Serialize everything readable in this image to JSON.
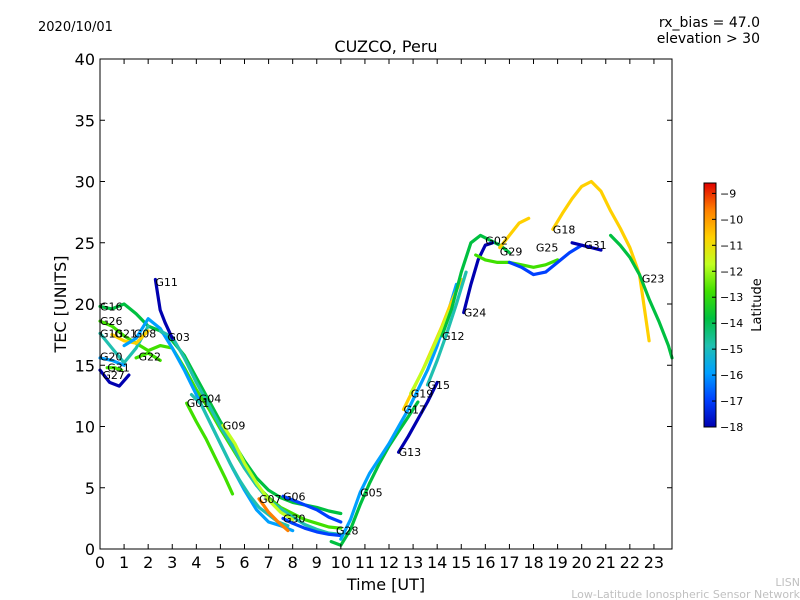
{
  "header": {
    "date": "2020/10/01",
    "rx_bias": "rx_bias = 47.0",
    "elevation": "elevation > 30"
  },
  "footer": {
    "credit_short": "LISN",
    "credit_long": "Low-Latitude Ionospheric Sensor Network"
  },
  "chart_data": {
    "type": "line",
    "title": "CUZCO, Peru",
    "xlabel": "Time [UT]",
    "ylabel": "TEC [UNITS]",
    "xlim": [
      0,
      23.75
    ],
    "ylim": [
      0,
      40
    ],
    "xticks": [
      0,
      1,
      2,
      3,
      4,
      5,
      6,
      7,
      8,
      9,
      10,
      11,
      12,
      13,
      14,
      15,
      16,
      17,
      18,
      19,
      20,
      21,
      22,
      23
    ],
    "yticks": [
      0,
      5,
      10,
      15,
      20,
      25,
      30,
      35,
      40
    ],
    "colorbar": {
      "label": "Latitude",
      "range": [
        -18,
        -8.6
      ],
      "ticks": [
        -9,
        -10,
        -11,
        -12,
        -13,
        -14,
        -15,
        -16,
        -17,
        -18
      ],
      "colors": [
        "#0000b0",
        "#0040ff",
        "#00a0ff",
        "#20c0b0",
        "#00c040",
        "#40e000",
        "#c0ff20",
        "#ffd000",
        "#ff8000",
        "#e00000"
      ]
    },
    "series": [
      {
        "name": "G16",
        "label_at": [
          0,
          19.8
        ],
        "lat": -13.5,
        "x": [
          0,
          0.5,
          1,
          1.5,
          2,
          2.5,
          3,
          3.5,
          4,
          4.5,
          5,
          5.5,
          6,
          6.5,
          7,
          7.5,
          8,
          8.5,
          9,
          9.5,
          10
        ],
        "y": [
          19.8,
          19.6,
          20,
          19.2,
          18.2,
          17.8,
          17,
          15.8,
          14,
          12.2,
          10.4,
          8.8,
          7.2,
          5.8,
          4.8,
          4.2,
          3.8,
          3.6,
          3.4,
          3.1,
          2.9
        ]
      },
      {
        "name": "G26",
        "label_at": [
          0,
          18.6
        ],
        "lat": -12.5,
        "x": [
          0,
          0.5,
          1,
          1.5,
          2,
          2.5,
          3,
          3.5,
          4,
          4.5,
          5,
          5.5,
          6,
          6.5,
          7,
          7.5,
          8,
          8.5,
          9,
          9.5,
          10
        ],
        "y": [
          18.6,
          18.2,
          17.4,
          16.8,
          16.2,
          16.6,
          16.4,
          14.8,
          13,
          11.5,
          9.8,
          8.2,
          6.6,
          5.2,
          4.2,
          3.4,
          2.9,
          2.4,
          2.1,
          1.8,
          1.7
        ]
      },
      {
        "name": "G10",
        "label_at": [
          0,
          17.6
        ],
        "lat": -15,
        "x": [
          0,
          0.5,
          1,
          1.5,
          2
        ],
        "y": [
          17.6,
          16.4,
          15.2,
          16.4,
          18.2
        ]
      },
      {
        "name": "G21",
        "label_at": [
          0.6,
          17.6
        ],
        "lat": -11,
        "x": [
          0.5,
          1,
          1.5,
          2
        ],
        "y": [
          17.5,
          17,
          16.8,
          17.8
        ]
      },
      {
        "name": "G08",
        "label_at": [
          1.4,
          17.6
        ],
        "lat": -16,
        "x": [
          1,
          1.5,
          2,
          2.5,
          3,
          3.5,
          4,
          4.5,
          5,
          5.5,
          6,
          6.5,
          7,
          7.5,
          8
        ],
        "y": [
          16.6,
          17.2,
          18.8,
          18,
          16.4,
          14.6,
          12.6,
          10.6,
          8.6,
          6.6,
          4.8,
          3.2,
          2.2,
          1.9,
          1.5
        ]
      },
      {
        "name": "G03",
        "label_at": [
          2.8,
          17.3
        ],
        "lat": -14.5,
        "x": [
          2.5,
          3,
          3.5,
          4,
          4.5,
          5,
          5.5,
          6,
          6.5,
          7,
          7.5,
          8,
          8.5,
          9,
          9.5,
          10
        ],
        "y": [
          17.8,
          17.3,
          15.6,
          13.6,
          11.8,
          10,
          8.4,
          6.6,
          5.2,
          4,
          3.3,
          2.6,
          2,
          1.6,
          1.3,
          1.2
        ]
      },
      {
        "name": "G20",
        "label_at": [
          0,
          15.7
        ],
        "lat": -16,
        "x": [
          0,
          0.5,
          1
        ],
        "y": [
          15.6,
          15.4,
          15
        ]
      },
      {
        "name": "G22",
        "label_at": [
          1.6,
          15.7
        ],
        "lat": -13,
        "x": [
          1.5,
          2,
          2.5
        ],
        "y": [
          15.6,
          16,
          15.4
        ]
      },
      {
        "name": "G31",
        "label_at": [
          0.3,
          14.8
        ],
        "lat": -13,
        "x": [
          0.3,
          0.6,
          0.9
        ],
        "y": [
          14.8,
          14.8,
          14.6
        ]
      },
      {
        "name": "G27",
        "label_at": [
          0.1,
          14.2
        ],
        "lat": -17.5,
        "x": [
          0,
          0.4,
          0.8,
          1.2
        ],
        "y": [
          14.6,
          13.6,
          13.3,
          14.2
        ]
      },
      {
        "name": "G11",
        "label_at": [
          2.3,
          21.8
        ],
        "lat": -17.5,
        "x": [
          2.3,
          2.5,
          2.7,
          3
        ],
        "y": [
          22,
          19.5,
          18.5,
          17.2
        ]
      },
      {
        "name": "G04",
        "label_at": [
          4.1,
          12.3
        ],
        "lat": -15,
        "x": [
          3.8,
          4.2,
          4.6,
          5,
          5.4,
          5.8,
          6.2,
          6.6,
          7,
          7.4,
          7.8
        ],
        "y": [
          12.6,
          11.8,
          10.2,
          8.6,
          7,
          5.6,
          4.4,
          3.4,
          2.8,
          2.2,
          1.9
        ]
      },
      {
        "name": "G01",
        "label_at": [
          3.6,
          11.9
        ],
        "lat": -13,
        "x": [
          3.6,
          4,
          4.4,
          4.8,
          5.2,
          5.5
        ],
        "y": [
          11.9,
          10.4,
          9,
          7.4,
          5.8,
          4.5
        ]
      },
      {
        "name": "G09",
        "label_at": [
          5.1,
          10.1
        ],
        "lat": -12,
        "x": [
          5.1,
          5.6,
          6,
          6.5,
          7,
          7.5,
          8
        ],
        "y": [
          10.1,
          8.6,
          7,
          5.4,
          4,
          3,
          2.4
        ]
      },
      {
        "name": "G07",
        "label_at": [
          6.6,
          4.1
        ],
        "lat": -10,
        "x": [
          6.6,
          7,
          7.4,
          7.8
        ],
        "y": [
          4.1,
          3,
          2.2,
          1.5
        ]
      },
      {
        "name": "G06",
        "label_at": [
          7.6,
          4.3
        ],
        "lat": -16.5,
        "x": [
          7.6,
          8,
          8.5,
          9,
          9.5,
          10
        ],
        "y": [
          4.3,
          4,
          3.6,
          3.2,
          2.6,
          2.2
        ]
      },
      {
        "name": "G30",
        "label_at": [
          7.6,
          2.5
        ],
        "lat": -17,
        "x": [
          7.6,
          8,
          8.5,
          9,
          9.5,
          10
        ],
        "y": [
          2.5,
          2.1,
          1.7,
          1.4,
          1.2,
          1.1
        ]
      },
      {
        "name": "G28",
        "label_at": [
          9.8,
          1.5
        ],
        "lat": -13.5,
        "x": [
          9.6,
          10,
          10.4,
          10.8,
          11.2,
          11.6,
          12,
          12.4,
          12.8,
          13.2
        ],
        "y": [
          0.6,
          0.3,
          1.6,
          3.6,
          5.4,
          7,
          8.4,
          9.6,
          10.8,
          12
        ]
      },
      {
        "name": "G05",
        "label_at": [
          10.8,
          4.6
        ],
        "lat": -16,
        "x": [
          10,
          10.4,
          10.8,
          11.2,
          11.6,
          12,
          12.4,
          12.8,
          13.2,
          13.6,
          14,
          14.4,
          14.8
        ],
        "y": [
          0.8,
          2.4,
          4.6,
          6.2,
          7.4,
          8.6,
          10,
          11.4,
          13,
          14.6,
          16.6,
          19,
          21.6
        ]
      },
      {
        "name": "G13",
        "label_at": [
          12.4,
          7.9
        ],
        "lat": -17.5,
        "x": [
          12.4,
          12.8,
          13.2,
          13.6,
          14
        ],
        "y": [
          7.9,
          9.2,
          10.6,
          12,
          13.6
        ]
      },
      {
        "name": "G17",
        "label_at": [
          12.6,
          11.4
        ],
        "lat": -11,
        "x": [
          12.6,
          13,
          13.4,
          13.8,
          14.2,
          14.6,
          15
        ],
        "y": [
          11.4,
          13,
          14.6,
          16.4,
          18.2,
          20.2,
          22
        ]
      },
      {
        "name": "G19",
        "label_at": [
          12.9,
          12.7
        ],
        "lat": -12,
        "x": [
          12.9,
          13.3,
          13.7,
          14.1,
          14.5
        ],
        "y": [
          12.7,
          14.2,
          15.8,
          17.6,
          19.4
        ]
      },
      {
        "name": "G15",
        "label_at": [
          13.6,
          13.4
        ],
        "lat": -15,
        "x": [
          13.6,
          14,
          14.4,
          14.8,
          15.2
        ],
        "y": [
          13.4,
          15.4,
          17.6,
          20,
          22.6
        ]
      },
      {
        "name": "G12",
        "label_at": [
          14.2,
          17.4
        ],
        "lat": -13.5,
        "x": [
          14.2,
          14.6,
          15,
          15.4,
          15.8,
          16.2,
          16.6,
          17
        ],
        "y": [
          17.4,
          19.6,
          22.6,
          25,
          25.6,
          25.2,
          24.8,
          24.2
        ]
      },
      {
        "name": "G24",
        "label_at": [
          15.1,
          19.3
        ],
        "lat": -17.5,
        "x": [
          15.1,
          15.4,
          15.7,
          16,
          16.3
        ],
        "y": [
          19.3,
          21.6,
          23.6,
          24.8,
          25
        ]
      },
      {
        "name": "G02",
        "label_at": [
          16,
          25.2
        ],
        "lat": -12.5,
        "x": [
          15.6,
          16,
          16.5,
          17,
          17.5,
          18,
          18.5,
          19
        ],
        "y": [
          24,
          23.6,
          23.4,
          23.4,
          23.2,
          23,
          23.2,
          23.6
        ]
      },
      {
        "name": "G29",
        "label_at": [
          16.6,
          24.3
        ],
        "lat": -11,
        "x": [
          16.6,
          17,
          17.4,
          17.8
        ],
        "y": [
          24.6,
          25.6,
          26.6,
          27
        ]
      },
      {
        "name": "G25",
        "label_at": [
          18.1,
          24.6
        ],
        "lat": -16.5,
        "x": [
          17,
          17.5,
          18,
          18.5,
          19,
          19.5,
          20
        ],
        "y": [
          23.4,
          23,
          22.4,
          22.6,
          23.4,
          24.2,
          24.8
        ]
      },
      {
        "name": "G18",
        "label_at": [
          18.8,
          26.1
        ],
        "lat": -10.5,
        "x": [
          18.8,
          19.2,
          19.6,
          20,
          20.4,
          20.8,
          21.2,
          21.6,
          22,
          22.4,
          22.8
        ],
        "y": [
          26.1,
          27.4,
          28.6,
          29.6,
          30,
          29.2,
          27.6,
          26.2,
          24.6,
          22.4,
          17
        ]
      },
      {
        "name": "G31",
        "label_at": [
          20.1,
          24.8
        ],
        "lat": -18,
        "x": [
          19.6,
          20,
          20.4,
          20.8
        ],
        "y": [
          25,
          24.8,
          24.6,
          24.4
        ]
      },
      {
        "name": "G23",
        "label_at": [
          22.5,
          22.1
        ],
        "lat": -13.5,
        "x": [
          21.2,
          21.6,
          22,
          22.4,
          22.8,
          23.2,
          23.6,
          23.75
        ],
        "y": [
          25.6,
          24.8,
          23.8,
          22.4,
          20.4,
          18.6,
          16.6,
          15.6
        ]
      }
    ]
  }
}
